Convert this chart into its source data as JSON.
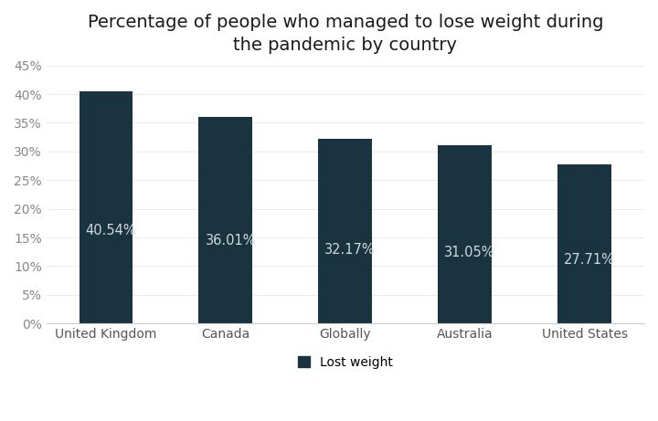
{
  "title": "Percentage of people who managed to lose weight during\nthe pandemic by country",
  "categories": [
    "United Kingdom",
    "Canada",
    "Globally",
    "Australia",
    "United States"
  ],
  "values": [
    40.54,
    36.01,
    32.17,
    31.05,
    27.71
  ],
  "labels": [
    "40.54%",
    "36.01%",
    "32.17%",
    "31.05%",
    "27.71%"
  ],
  "bar_color": "#1a3340",
  "label_color": "#d0d8dc",
  "background_color": "#ffffff",
  "title_fontsize": 14,
  "tick_fontsize": 10,
  "label_fontsize": 10.5,
  "ylim": [
    0,
    45
  ],
  "yticks": [
    0,
    5,
    10,
    15,
    20,
    25,
    30,
    35,
    40,
    45
  ],
  "legend_label": "Lost weight",
  "legend_marker_color": "#1a3340",
  "bar_width": 0.45
}
